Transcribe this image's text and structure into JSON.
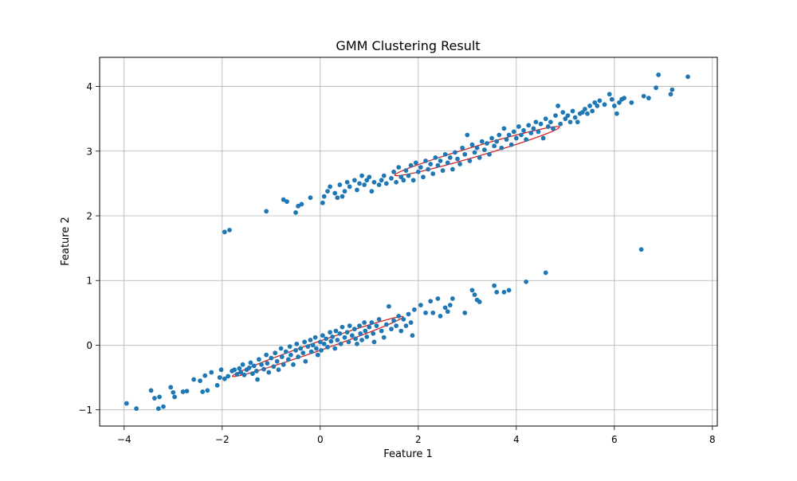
{
  "chart_data": {
    "type": "scatter",
    "title": "GMM Clustering Result",
    "xlabel": "Feature 1",
    "ylabel": "Feature 2",
    "xlim": [
      -4.5,
      8.1
    ],
    "ylim": [
      -1.25,
      4.45
    ],
    "xticks": [
      -4,
      -2,
      0,
      2,
      4,
      6,
      8
    ],
    "xtick_labels": [
      "−4",
      "−2",
      "0",
      "2",
      "4",
      "6",
      "8"
    ],
    "yticks": [
      -1,
      0,
      1,
      2,
      3,
      4
    ],
    "ytick_labels": [
      "−1",
      "0",
      "1",
      "2",
      "3",
      "4"
    ],
    "grid": true,
    "colors": {
      "points": "#1f77b4",
      "ellipses": "#d62728",
      "grid": "#b0b0b0"
    },
    "clusters": [
      {
        "center": [
          -0.3,
          0.0
        ],
        "ellipse": {
          "center": [
            -0.05,
            -0.02
          ],
          "semi_axes": [
            1.8,
            0.07
          ],
          "angle_deg": 14.8
        },
        "points": [
          [
            -3.95,
            -0.9
          ],
          [
            -3.75,
            -0.98
          ],
          [
            -3.45,
            -0.7
          ],
          [
            -3.38,
            -0.82
          ],
          [
            -3.3,
            -0.98
          ],
          [
            -3.28,
            -0.8
          ],
          [
            -3.2,
            -0.95
          ],
          [
            -3.05,
            -0.65
          ],
          [
            -3.0,
            -0.73
          ],
          [
            -2.97,
            -0.8
          ],
          [
            -2.8,
            -0.72
          ],
          [
            -2.72,
            -0.71
          ],
          [
            -2.58,
            -0.53
          ],
          [
            -2.45,
            -0.55
          ],
          [
            -2.4,
            -0.72
          ],
          [
            -2.35,
            -0.47
          ],
          [
            -2.3,
            -0.7
          ],
          [
            -2.22,
            -0.42
          ],
          [
            -2.1,
            -0.62
          ],
          [
            -2.05,
            -0.5
          ],
          [
            -2.02,
            -0.38
          ],
          [
            -1.95,
            -0.52
          ],
          [
            -1.88,
            -0.48
          ],
          [
            -1.8,
            -0.4
          ],
          [
            -1.75,
            -0.38
          ],
          [
            -1.7,
            -0.45
          ],
          [
            -1.65,
            -0.36
          ],
          [
            -1.62,
            -0.42
          ],
          [
            -1.58,
            -0.3
          ],
          [
            -1.55,
            -0.46
          ],
          [
            -1.5,
            -0.38
          ],
          [
            -1.45,
            -0.35
          ],
          [
            -1.42,
            -0.27
          ],
          [
            -1.38,
            -0.44
          ],
          [
            -1.35,
            -0.32
          ],
          [
            -1.3,
            -0.4
          ],
          [
            -1.28,
            -0.53
          ],
          [
            -1.25,
            -0.22
          ],
          [
            -1.2,
            -0.3
          ],
          [
            -1.15,
            -0.37
          ],
          [
            -1.1,
            -0.15
          ],
          [
            -1.08,
            -0.28
          ],
          [
            -1.05,
            -0.42
          ],
          [
            -1.0,
            -0.2
          ],
          [
            -0.95,
            -0.33
          ],
          [
            -0.92,
            -0.12
          ],
          [
            -0.88,
            -0.25
          ],
          [
            -0.85,
            -0.38
          ],
          [
            -0.8,
            -0.05
          ],
          [
            -0.78,
            -0.18
          ],
          [
            -0.75,
            -0.3
          ],
          [
            -0.7,
            -0.1
          ],
          [
            -0.65,
            -0.22
          ],
          [
            -0.62,
            -0.02
          ],
          [
            -0.6,
            -0.15
          ],
          [
            -0.55,
            -0.3
          ],
          [
            -0.5,
            -0.08
          ],
          [
            -0.48,
            0.02
          ],
          [
            -0.45,
            -0.18
          ],
          [
            -0.4,
            -0.05
          ],
          [
            -0.35,
            -0.12
          ],
          [
            -0.32,
            0.05
          ],
          [
            -0.3,
            -0.25
          ],
          [
            -0.25,
            -0.02
          ],
          [
            -0.2,
            0.08
          ],
          [
            -0.18,
            -0.1
          ],
          [
            -0.15,
            0.0
          ],
          [
            -0.1,
            0.12
          ],
          [
            -0.08,
            -0.05
          ],
          [
            -0.05,
            -0.15
          ],
          [
            0.0,
            0.05
          ],
          [
            0.02,
            -0.08
          ],
          [
            0.05,
            0.15
          ],
          [
            0.08,
            0.02
          ],
          [
            0.12,
            0.1
          ],
          [
            0.15,
            -0.03
          ],
          [
            0.2,
            0.2
          ],
          [
            0.22,
            0.06
          ],
          [
            0.25,
            0.13
          ],
          [
            0.3,
            -0.05
          ],
          [
            0.32,
            0.22
          ],
          [
            0.35,
            0.08
          ],
          [
            0.4,
            0.18
          ],
          [
            0.42,
            0.02
          ],
          [
            0.45,
            0.28
          ],
          [
            0.5,
            0.12
          ],
          [
            0.55,
            0.2
          ],
          [
            0.58,
            0.05
          ],
          [
            0.6,
            0.3
          ],
          [
            0.65,
            0.15
          ],
          [
            0.7,
            0.25
          ],
          [
            0.72,
            0.1
          ],
          [
            0.75,
            0.02
          ],
          [
            0.8,
            0.3
          ],
          [
            0.82,
            0.18
          ],
          [
            0.85,
            0.08
          ],
          [
            0.9,
            0.35
          ],
          [
            0.92,
            0.22
          ],
          [
            0.95,
            0.13
          ],
          [
            1.0,
            0.28
          ],
          [
            1.05,
            0.35
          ],
          [
            1.08,
            0.18
          ],
          [
            1.1,
            0.05
          ],
          [
            1.15,
            0.3
          ],
          [
            1.2,
            0.4
          ],
          [
            1.25,
            0.22
          ],
          [
            1.3,
            0.12
          ],
          [
            1.35,
            0.32
          ],
          [
            1.4,
            0.6
          ],
          [
            1.45,
            0.25
          ],
          [
            1.5,
            0.38
          ],
          [
            1.55,
            0.3
          ],
          [
            1.6,
            0.45
          ],
          [
            1.65,
            0.22
          ],
          [
            1.7,
            0.4
          ],
          [
            1.75,
            0.3
          ],
          [
            1.8,
            0.48
          ],
          [
            1.85,
            0.35
          ],
          [
            1.88,
            0.15
          ],
          [
            1.92,
            0.55
          ],
          [
            2.05,
            0.62
          ],
          [
            2.15,
            0.5
          ],
          [
            2.25,
            0.68
          ],
          [
            2.3,
            0.5
          ],
          [
            2.4,
            0.72
          ],
          [
            2.45,
            0.45
          ],
          [
            2.55,
            0.58
          ],
          [
            2.6,
            0.52
          ],
          [
            2.65,
            0.62
          ],
          [
            2.7,
            0.72
          ],
          [
            2.95,
            0.5
          ],
          [
            3.1,
            0.85
          ],
          [
            3.15,
            0.78
          ],
          [
            3.2,
            0.7
          ],
          [
            3.25,
            0.67
          ],
          [
            3.55,
            0.92
          ],
          [
            3.6,
            0.82
          ],
          [
            3.75,
            0.82
          ],
          [
            3.85,
            0.85
          ],
          [
            4.2,
            0.98
          ],
          [
            4.6,
            1.12
          ]
        ]
      },
      {
        "center": [
          3.5,
          3.0
        ],
        "ellipse": {
          "center": [
            3.2,
            3.0
          ],
          "semi_axes": [
            1.72,
            0.08
          ],
          "angle_deg": 12.5
        },
        "points": [
          [
            -1.95,
            1.75
          ],
          [
            -1.85,
            1.78
          ],
          [
            -1.1,
            2.07
          ],
          [
            -0.75,
            2.25
          ],
          [
            -0.68,
            2.22
          ],
          [
            -0.5,
            2.05
          ],
          [
            -0.45,
            2.15
          ],
          [
            -0.38,
            2.18
          ],
          [
            -0.2,
            2.28
          ],
          [
            0.05,
            2.2
          ],
          [
            0.08,
            2.3
          ],
          [
            0.15,
            2.38
          ],
          [
            0.2,
            2.45
          ],
          [
            0.3,
            2.35
          ],
          [
            0.35,
            2.28
          ],
          [
            0.4,
            2.48
          ],
          [
            0.45,
            2.3
          ],
          [
            0.5,
            2.38
          ],
          [
            0.55,
            2.52
          ],
          [
            0.6,
            2.45
          ],
          [
            0.7,
            2.55
          ],
          [
            0.75,
            2.4
          ],
          [
            0.8,
            2.5
          ],
          [
            0.85,
            2.62
          ],
          [
            0.9,
            2.48
          ],
          [
            0.95,
            2.55
          ],
          [
            1.0,
            2.6
          ],
          [
            1.05,
            2.38
          ],
          [
            1.1,
            2.52
          ],
          [
            1.2,
            2.48
          ],
          [
            1.25,
            2.55
          ],
          [
            1.3,
            2.62
          ],
          [
            1.35,
            2.5
          ],
          [
            1.45,
            2.58
          ],
          [
            1.5,
            2.68
          ],
          [
            1.55,
            2.52
          ],
          [
            1.6,
            2.75
          ],
          [
            1.65,
            2.6
          ],
          [
            1.7,
            2.55
          ],
          [
            1.75,
            2.7
          ],
          [
            1.8,
            2.62
          ],
          [
            1.85,
            2.78
          ],
          [
            1.9,
            2.55
          ],
          [
            1.95,
            2.82
          ],
          [
            2.0,
            2.68
          ],
          [
            2.05,
            2.75
          ],
          [
            2.1,
            2.6
          ],
          [
            2.15,
            2.85
          ],
          [
            2.2,
            2.72
          ],
          [
            2.25,
            2.8
          ],
          [
            2.3,
            2.65
          ],
          [
            2.35,
            2.9
          ],
          [
            2.4,
            2.78
          ],
          [
            2.45,
            2.85
          ],
          [
            2.5,
            2.7
          ],
          [
            2.55,
            2.95
          ],
          [
            2.6,
            2.82
          ],
          [
            2.65,
            2.9
          ],
          [
            2.7,
            2.72
          ],
          [
            2.75,
            2.98
          ],
          [
            2.8,
            2.88
          ],
          [
            2.85,
            2.8
          ],
          [
            2.9,
            3.05
          ],
          [
            2.95,
            2.95
          ],
          [
            3.0,
            3.25
          ],
          [
            3.05,
            2.85
          ],
          [
            3.1,
            3.1
          ],
          [
            3.15,
            2.98
          ],
          [
            3.2,
            3.05
          ],
          [
            3.25,
            2.9
          ],
          [
            3.3,
            3.15
          ],
          [
            3.35,
            3.02
          ],
          [
            3.4,
            3.12
          ],
          [
            3.45,
            2.95
          ],
          [
            3.5,
            3.2
          ],
          [
            3.55,
            3.08
          ],
          [
            3.6,
            3.15
          ],
          [
            3.65,
            3.25
          ],
          [
            3.7,
            3.05
          ],
          [
            3.75,
            3.35
          ],
          [
            3.8,
            3.18
          ],
          [
            3.85,
            3.25
          ],
          [
            3.9,
            3.1
          ],
          [
            3.95,
            3.3
          ],
          [
            4.0,
            3.2
          ],
          [
            4.05,
            3.38
          ],
          [
            4.1,
            3.25
          ],
          [
            4.15,
            3.32
          ],
          [
            4.2,
            3.18
          ],
          [
            4.25,
            3.4
          ],
          [
            4.3,
            3.28
          ],
          [
            4.35,
            3.35
          ],
          [
            4.4,
            3.45
          ],
          [
            4.45,
            3.3
          ],
          [
            4.5,
            3.42
          ],
          [
            4.55,
            3.2
          ],
          [
            4.6,
            3.5
          ],
          [
            4.65,
            3.38
          ],
          [
            4.7,
            3.45
          ],
          [
            4.75,
            3.35
          ],
          [
            4.8,
            3.55
          ],
          [
            4.85,
            3.7
          ],
          [
            4.9,
            3.42
          ],
          [
            4.95,
            3.6
          ],
          [
            5.0,
            3.5
          ],
          [
            5.05,
            3.55
          ],
          [
            5.1,
            3.45
          ],
          [
            5.15,
            3.62
          ],
          [
            5.2,
            3.52
          ],
          [
            5.25,
            3.45
          ],
          [
            5.3,
            3.58
          ],
          [
            5.35,
            3.6
          ],
          [
            5.4,
            3.65
          ],
          [
            5.45,
            3.58
          ],
          [
            5.5,
            3.7
          ],
          [
            5.55,
            3.62
          ],
          [
            5.6,
            3.75
          ],
          [
            5.65,
            3.7
          ],
          [
            5.7,
            3.78
          ],
          [
            5.8,
            3.72
          ],
          [
            5.9,
            3.88
          ],
          [
            5.95,
            3.8
          ],
          [
            6.0,
            3.7
          ],
          [
            6.05,
            3.58
          ],
          [
            6.1,
            3.75
          ],
          [
            6.15,
            3.8
          ],
          [
            6.2,
            3.82
          ],
          [
            6.35,
            3.75
          ],
          [
            6.6,
            3.85
          ],
          [
            6.7,
            3.82
          ],
          [
            6.85,
            3.98
          ],
          [
            6.9,
            4.18
          ],
          [
            7.15,
            3.88
          ],
          [
            7.18,
            3.95
          ],
          [
            7.5,
            4.15
          ],
          [
            6.55,
            1.48
          ]
        ]
      }
    ]
  }
}
